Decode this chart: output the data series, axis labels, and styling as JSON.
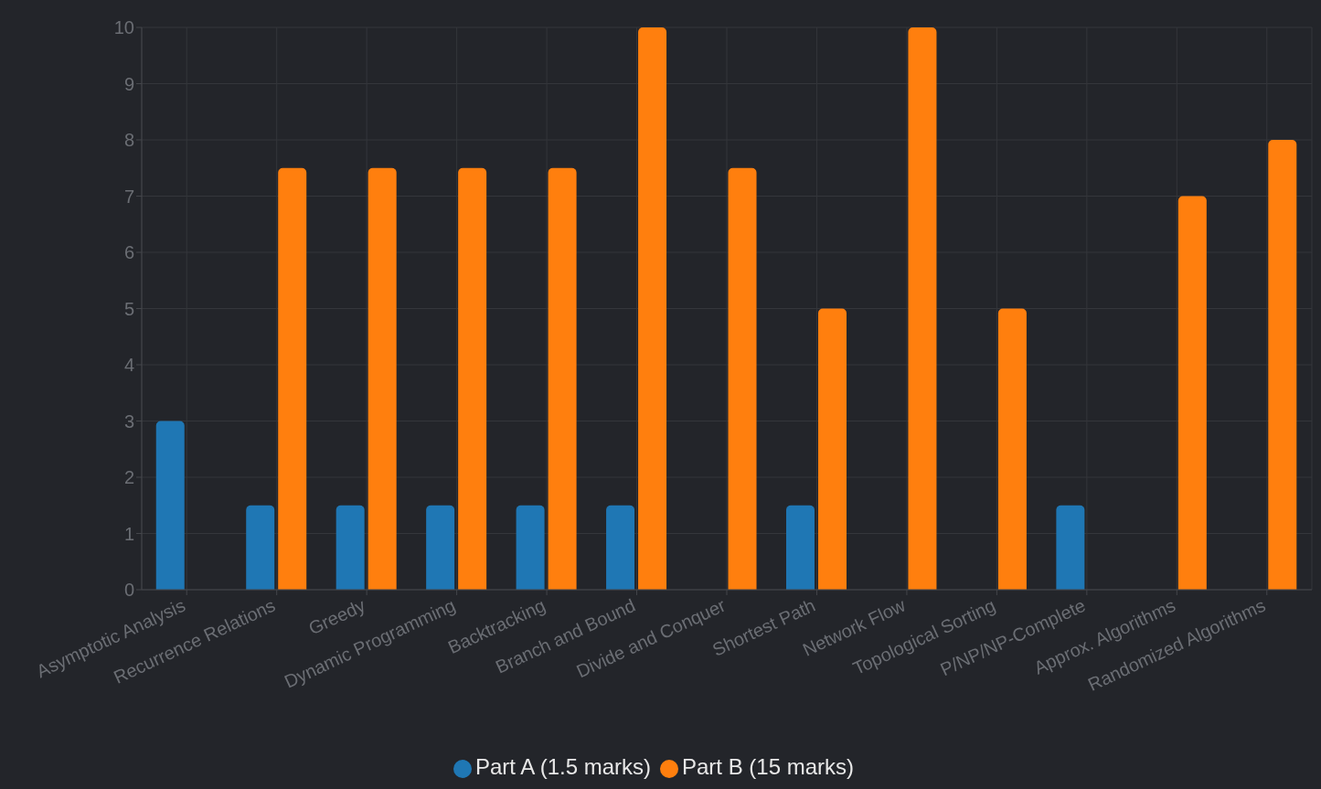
{
  "chart_data": {
    "type": "bar",
    "categories": [
      "Asymptotic Analysis",
      "Recurrence Relations",
      "Greedy",
      "Dynamic Programming",
      "Backtracking",
      "Branch and Bound",
      "Divide and Conquer",
      "Shortest Path",
      "Network Flow",
      "Topological Sorting",
      "P/NP/NP-Complete",
      "Approx. Algorithms",
      "Randomized Algorithms"
    ],
    "series": [
      {
        "name": "Part A (1.5 marks)",
        "color": "#1f77b4",
        "values": [
          3,
          1.5,
          1.5,
          1.5,
          1.5,
          1.5,
          null,
          1.5,
          null,
          null,
          1.5,
          null,
          null
        ]
      },
      {
        "name": "Part B (15 marks)",
        "color": "#ff7f0e",
        "values": [
          null,
          7.5,
          7.5,
          7.5,
          7.5,
          10,
          7.5,
          5,
          10,
          5,
          null,
          7,
          8
        ]
      }
    ],
    "ylim": [
      0,
      10
    ],
    "yticks": [
      0,
      1,
      2,
      3,
      4,
      5,
      6,
      7,
      8,
      9,
      10
    ],
    "grid": true,
    "legend": "bottom"
  }
}
